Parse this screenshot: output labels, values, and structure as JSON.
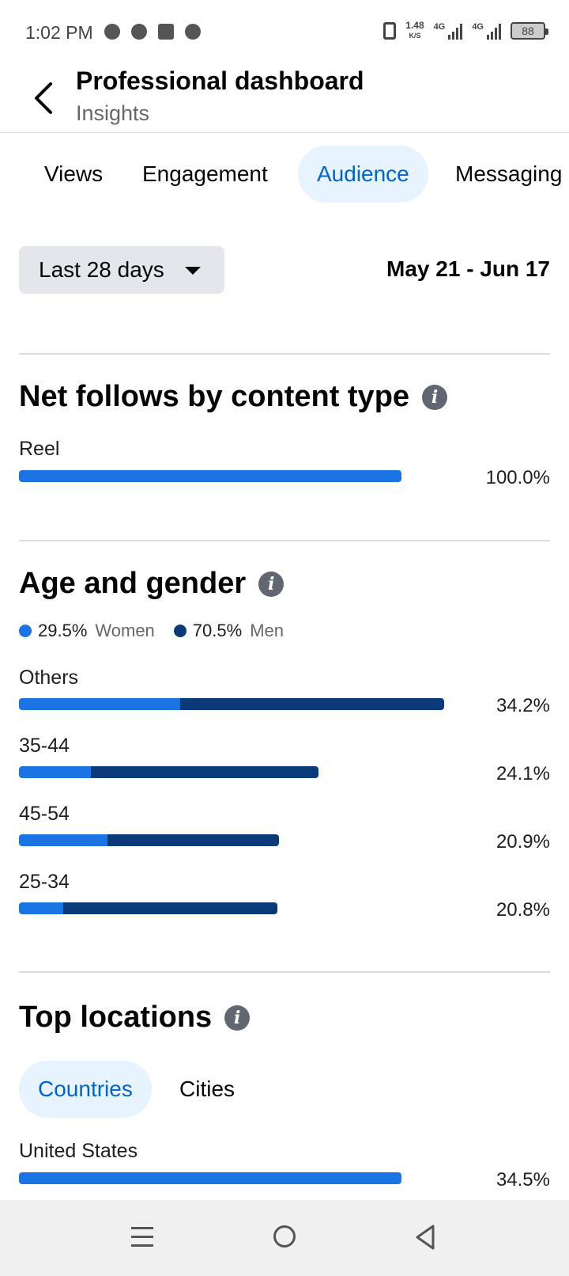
{
  "status_bar": {
    "time": "1:02 PM",
    "notification_icons": [
      "messenger-icon",
      "chat-icon",
      "facebook-icon",
      "whatsapp-icon"
    ],
    "net_speed_value": "1.48",
    "net_speed_unit": "K/S",
    "sim1_label": "4G",
    "sim2_label": "4G",
    "battery": "88"
  },
  "header": {
    "title": "Professional dashboard",
    "subtitle": "Insights"
  },
  "tabs": [
    {
      "label": "Views",
      "active": false
    },
    {
      "label": "Engagement",
      "active": false
    },
    {
      "label": "Audience",
      "active": true
    },
    {
      "label": "Messaging",
      "active": false
    }
  ],
  "filter": {
    "range_label": "Last 28 days",
    "date_range": "May 21 - Jun 17"
  },
  "net_follows": {
    "title": "Net follows by content type",
    "rows": [
      {
        "label": "Reel",
        "value": "100.0%",
        "fraction": 1.0
      }
    ]
  },
  "age_gender": {
    "title": "Age and gender",
    "legend": {
      "women_pct": "29.5%",
      "women_label": "Women",
      "men_pct": "70.5%",
      "men_label": "Men"
    },
    "rows": [
      {
        "label": "Others",
        "value": "34.2%",
        "total": 34.2,
        "women_share": 0.38
      },
      {
        "label": "35-44",
        "value": "24.1%",
        "total": 24.1,
        "women_share": 0.24
      },
      {
        "label": "45-54",
        "value": "20.9%",
        "total": 20.9,
        "women_share": 0.34
      },
      {
        "label": "25-34",
        "value": "20.8%",
        "total": 20.8,
        "women_share": 0.17
      }
    ]
  },
  "top_locations": {
    "title": "Top locations",
    "chips": [
      {
        "label": "Countries",
        "active": true
      },
      {
        "label": "Cities",
        "active": false
      }
    ],
    "rows": [
      {
        "label": "United States",
        "value": "34.5%",
        "fraction": 1.0
      }
    ]
  },
  "colors": {
    "accent": "#1b74e4",
    "men": "#0a3a78",
    "active_tab_bg": "#e7f3ff",
    "active_tab_text": "#0064d1"
  }
}
